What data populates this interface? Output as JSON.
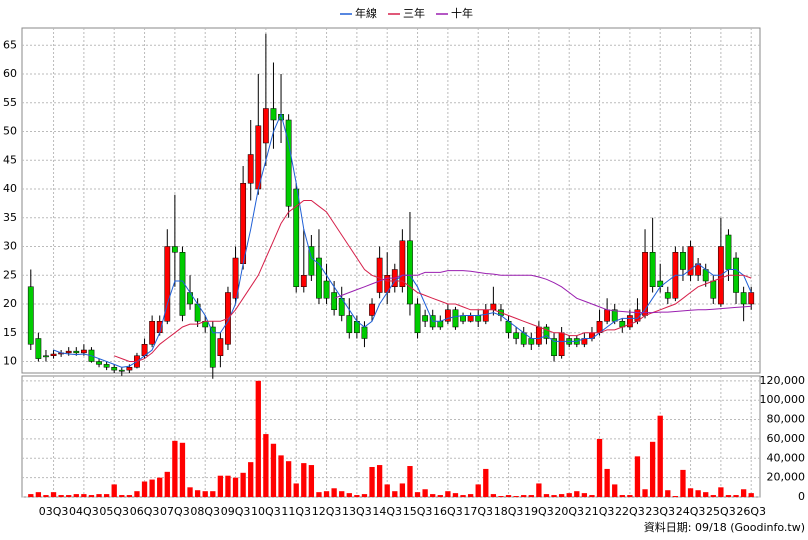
{
  "chart_data": {
    "type": "candlestick",
    "legend": "top",
    "grid": true,
    "up_color": "#ff0000",
    "down_color": "#00cc00",
    "categories": [
      null,
      null,
      null,
      "03Q3",
      null,
      null,
      null,
      "04Q3",
      null,
      null,
      null,
      "05Q3",
      null,
      null,
      null,
      "06Q3",
      null,
      null,
      null,
      "07Q3",
      null,
      null,
      null,
      "08Q3",
      null,
      null,
      null,
      "09Q3",
      null,
      null,
      null,
      "10Q3",
      null,
      null,
      null,
      "11Q3",
      null,
      null,
      null,
      "12Q3",
      null,
      null,
      null,
      "13Q3",
      null,
      null,
      null,
      "14Q3",
      null,
      null,
      null,
      "15Q3",
      null,
      null,
      null,
      "16Q3",
      null,
      null,
      null,
      "17Q3",
      null,
      null,
      null,
      "18Q3",
      null,
      null,
      null,
      "19Q3",
      null,
      null,
      null,
      "20Q3",
      null,
      null,
      null,
      "21Q3",
      null,
      null,
      null,
      "22Q3",
      null,
      null,
      null,
      "23Q3",
      null,
      null,
      null,
      "24Q3",
      null,
      null,
      null,
      "25Q3",
      null,
      null,
      null,
      "26Q3"
    ],
    "open": [
      23,
      14,
      11,
      11,
      11.3,
      11.5,
      11.8,
      11.5,
      12,
      10,
      9.5,
      9,
      8.5,
      8.5,
      9,
      11,
      13,
      15,
      17,
      30,
      29,
      22,
      20,
      17,
      16,
      11,
      13,
      21,
      27,
      41,
      40,
      48,
      54,
      53,
      52,
      40,
      23,
      30,
      28,
      24,
      22,
      21,
      18,
      17,
      16,
      18,
      22,
      22,
      23,
      23,
      31,
      20,
      18,
      18,
      17,
      17,
      19,
      18,
      17,
      18,
      17,
      19,
      19,
      17,
      15,
      15,
      14,
      13,
      16,
      14,
      11,
      14,
      14,
      13,
      14,
      15,
      17,
      19,
      17,
      16,
      17,
      18,
      29,
      24,
      22,
      21,
      29,
      25,
      25,
      26,
      24,
      20,
      32,
      28,
      22,
      20
    ],
    "high": [
      26,
      15,
      12,
      12,
      12,
      12.5,
      12.5,
      13,
      12.5,
      10.5,
      10,
      9.5,
      9,
      9.5,
      11.5,
      14,
      18,
      18,
      33,
      39,
      30,
      25,
      21,
      18,
      17,
      15,
      23,
      30,
      44,
      52,
      60,
      67,
      62,
      60,
      53,
      41,
      33,
      32,
      33,
      27,
      24,
      23,
      21,
      18,
      17,
      21,
      30,
      29,
      27,
      33,
      36,
      21,
      19,
      19,
      18,
      20,
      19.5,
      18.5,
      18.5,
      19,
      20,
      23,
      20,
      18,
      16,
      16,
      15,
      17,
      16.5,
      15,
      16,
      14.5,
      14.5,
      15,
      16,
      19,
      21,
      20,
      17.5,
      19,
      21,
      33,
      35,
      27,
      23,
      30,
      30,
      31,
      28,
      27,
      25,
      35,
      33,
      29,
      23,
      23
    ],
    "low": [
      12,
      10,
      10,
      10.5,
      10.8,
      11,
      11,
      11,
      9.8,
      9,
      8.5,
      8,
      7.5,
      8,
      8.8,
      10.5,
      12.5,
      14.5,
      16.5,
      23,
      17,
      19,
      16,
      15,
      7,
      9,
      12,
      20,
      26,
      38,
      39,
      44,
      47,
      48,
      35,
      22,
      22,
      24,
      20,
      20,
      18,
      17,
      14,
      14,
      12.5,
      17,
      21,
      20,
      22,
      22,
      18,
      14,
      16,
      15.5,
      15.5,
      16.5,
      15.5,
      16.5,
      16.8,
      16,
      16.5,
      18,
      17,
      14,
      13,
      12.5,
      12,
      12.5,
      13,
      10,
      10.5,
      12.5,
      12.5,
      12.5,
      13.5,
      14.5,
      16.5,
      16.5,
      15,
      15.5,
      16.5,
      17.5,
      22,
      22,
      20,
      20.5,
      24,
      24,
      24,
      23,
      20,
      19.5,
      24,
      20,
      17,
      19
    ],
    "close": [
      13,
      10.5,
      10.8,
      11.3,
      11.5,
      11.8,
      11.5,
      12,
      10,
      9.5,
      9,
      8.5,
      8.3,
      9,
      11,
      13,
      17,
      17,
      30,
      29,
      18,
      20,
      17,
      16,
      9,
      14,
      22,
      28,
      41,
      46,
      51,
      54,
      52,
      52,
      37,
      23,
      25,
      25,
      21,
      21,
      19,
      18,
      15,
      15,
      14,
      20,
      28,
      25,
      26,
      31,
      20,
      15,
      17,
      16,
      16,
      19,
      16,
      17,
      18,
      17,
      19,
      20,
      18,
      15,
      14,
      13,
      13,
      16,
      14,
      11,
      15,
      13,
      13,
      14,
      15,
      17,
      19,
      17,
      16,
      18,
      19,
      29,
      23,
      23,
      21,
      29,
      26,
      30,
      27,
      24,
      21,
      30,
      26,
      22,
      20,
      22
    ],
    "series": [
      {
        "name": "年線",
        "color": "#1f5fd6",
        "values": [
          null,
          null,
          null,
          12,
          11.5,
          11.3,
          11.2,
          11.3,
          11,
          10.5,
          10,
          9.5,
          9,
          9.2,
          10,
          11,
          12,
          15,
          20,
          24,
          24,
          22,
          20,
          18,
          15,
          15,
          17,
          20,
          27,
          33,
          40,
          45,
          50,
          53,
          48,
          41,
          33,
          28,
          27,
          25,
          23,
          21,
          19,
          17,
          16,
          17,
          20,
          22,
          24,
          25,
          25,
          23,
          20,
          17,
          17,
          17.5,
          17.8,
          18,
          18,
          18,
          18.2,
          18.5,
          18,
          17,
          16,
          15,
          14,
          14,
          14.5,
          13.5,
          13.5,
          13.5,
          13.5,
          14,
          14,
          15,
          16,
          17,
          17.5,
          17.5,
          17.5,
          19,
          21,
          23,
          24,
          25,
          25,
          26,
          27,
          26,
          25,
          25,
          26,
          26,
          25,
          22
        ]
      },
      {
        "name": "三年",
        "color": "#d6204a",
        "values": [
          null,
          null,
          null,
          null,
          null,
          null,
          null,
          null,
          null,
          null,
          null,
          11,
          10.5,
          10,
          10,
          10.5,
          11.5,
          13,
          14,
          15,
          16,
          16.5,
          16.5,
          17,
          17,
          17,
          17.5,
          19,
          21,
          23,
          25,
          28,
          31,
          34,
          36,
          37,
          38,
          38,
          37,
          36,
          34,
          32,
          30,
          28,
          26,
          25,
          24.5,
          24,
          24,
          24,
          23,
          22,
          21.5,
          21,
          20.5,
          20,
          20,
          19.5,
          19,
          19,
          19,
          19,
          18.5,
          18,
          17.5,
          17,
          16.5,
          16,
          15.5,
          15,
          15,
          14.5,
          14.5,
          15,
          15,
          15,
          15.5,
          15.5,
          16,
          16.5,
          17,
          18,
          18.5,
          19,
          19.5,
          20,
          21,
          22,
          23,
          23.5,
          24,
          24.5,
          25,
          25,
          25,
          24.5
        ]
      },
      {
        "name": "十年",
        "color": "#9a1fb0",
        "values": [
          null,
          null,
          null,
          null,
          null,
          null,
          null,
          null,
          null,
          null,
          null,
          null,
          null,
          null,
          null,
          null,
          null,
          null,
          null,
          null,
          null,
          null,
          null,
          null,
          null,
          null,
          null,
          null,
          null,
          null,
          null,
          null,
          null,
          null,
          null,
          null,
          null,
          null,
          null,
          null,
          21,
          21.5,
          22,
          22.5,
          23,
          23.5,
          24,
          24.5,
          24.5,
          25,
          25,
          25,
          25.5,
          25.5,
          25.5,
          25.8,
          25.8,
          25.8,
          25.7,
          25.5,
          25.3,
          25.2,
          25,
          25,
          25,
          25,
          25,
          24.7,
          24.3,
          23.7,
          23,
          22,
          21,
          20.5,
          20,
          19.5,
          19,
          18.8,
          18.7,
          18.6,
          18.5,
          18.5,
          18.5,
          18.6,
          18.6,
          18.7,
          18.8,
          18.9,
          19,
          19,
          19.1,
          19.2,
          19.3,
          19.4,
          19.5,
          19.6
        ]
      }
    ],
    "ylim": [
      8,
      68
    ],
    "yticks": [
      10,
      15,
      20,
      25,
      30,
      35,
      40,
      45,
      50,
      55,
      60,
      65
    ],
    "volume": {
      "color": "#ff0000",
      "values": [
        3000,
        5000,
        2000,
        5000,
        2000,
        2000,
        3000,
        3000,
        2000,
        3000,
        3000,
        13000,
        2000,
        2000,
        6000,
        16000,
        18000,
        20000,
        26000,
        58000,
        56000,
        10000,
        7000,
        6000,
        6000,
        22000,
        22000,
        20000,
        25000,
        36000,
        120000,
        65000,
        55000,
        43000,
        37000,
        14000,
        35000,
        33000,
        5000,
        6000,
        9000,
        6000,
        4000,
        2000,
        3000,
        31000,
        33000,
        13000,
        6000,
        14000,
        32000,
        5000,
        8000,
        3000,
        2000,
        6000,
        4000,
        2000,
        3000,
        13000,
        29000,
        3000,
        1000,
        2000,
        1000,
        2000,
        2000,
        14000,
        3000,
        2000,
        3000,
        4000,
        6000,
        4000,
        2000,
        60000,
        29000,
        13000,
        2000,
        2000,
        42000,
        8000,
        57000,
        84000,
        7000,
        1000,
        28000,
        9000,
        7000,
        5000,
        2000,
        10000,
        2000,
        2000,
        8000,
        4000
      ],
      "ylim": [
        0,
        125000
      ],
      "yticks": [
        0,
        {
          "value": 20000,
          "label": "20,000"
        },
        {
          "value": 40000,
          "label": "40,000"
        },
        {
          "value": 60000,
          "label": "60,000"
        },
        {
          "value": 80000,
          "label": "80,000"
        },
        {
          "value": 100000,
          "label": "100,000"
        },
        {
          "value": 120000,
          "label": "120,000"
        }
      ]
    },
    "footer": "資料日期: 09/18 (Goodinfo.tw)"
  }
}
